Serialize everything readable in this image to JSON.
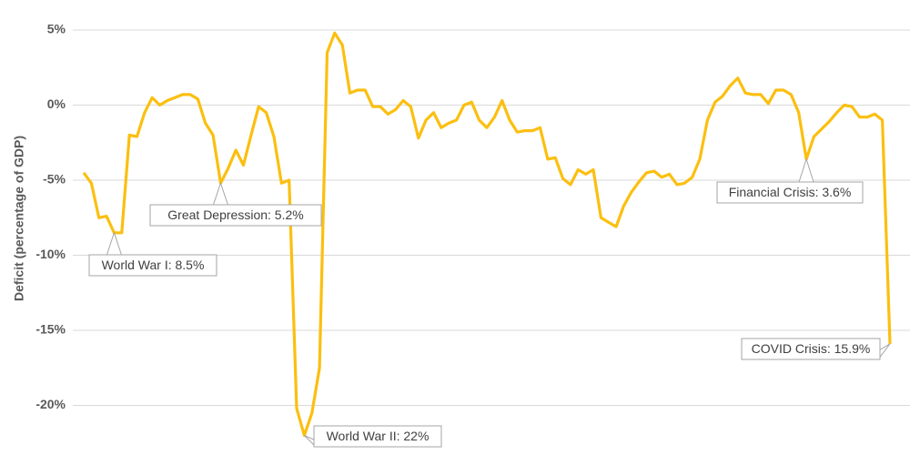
{
  "chart_data": {
    "type": "line",
    "y_label": "Deficit (percentage of GDP)",
    "color": "#fbbf10",
    "grid": true,
    "ylim": [
      -23,
      6
    ],
    "yticks": [
      {
        "value": 5,
        "label": "5%"
      },
      {
        "value": 0,
        "label": "0%"
      },
      {
        "value": -5,
        "label": "-5%"
      },
      {
        "value": -10,
        "label": "-10%"
      },
      {
        "value": -15,
        "label": "-15%"
      },
      {
        "value": -20,
        "label": "-20%"
      }
    ],
    "values": [
      -4.5,
      -5.2,
      -7.5,
      -7.4,
      -8.5,
      -8.5,
      -2.0,
      -2.1,
      -0.5,
      0.5,
      0,
      0.3,
      0.5,
      0.7,
      0.7,
      0.4,
      -1.2,
      -2.0,
      -5.2,
      -4.2,
      -3.0,
      -4.0,
      -2.0,
      -0.1,
      -0.5,
      -2.1,
      -5.2,
      -5.0,
      -20.2,
      -22,
      -20.5,
      -17.5,
      3.5,
      4.8,
      4.0,
      0.8,
      1.0,
      1.0,
      -0.1,
      -0.1,
      -0.6,
      -0.3,
      0.3,
      -0.1,
      -2.2,
      -1.0,
      -0.5,
      -1.5,
      -1.2,
      -1.0,
      0,
      0.2,
      -1.0,
      -1.5,
      -0.8,
      0.3,
      -1.0,
      -1.8,
      -1.7,
      -1.7,
      -1.5,
      -3.6,
      -3.5,
      -4.9,
      -5.3,
      -4.3,
      -4.6,
      -4.3,
      -7.5,
      -7.8,
      -8.1,
      -6.7,
      -5.8,
      -5.1,
      -4.5,
      -4.4,
      -4.8,
      -4.6,
      -5.3,
      -5.2,
      -4.8,
      -3.6,
      -1.0,
      0.2,
      0.6,
      1.3,
      1.8,
      0.8,
      0.7,
      0.7,
      0.1,
      1.0,
      1.0,
      0.7,
      -0.5,
      -3.6,
      -2.1,
      -1.6,
      -1.1,
      -0.5,
      0,
      -0.1,
      -0.8,
      -0.8,
      -0.6,
      -1.0,
      -15.9
    ],
    "annotations": [
      "World War I: 8.5%",
      "Great Depression: 5.2%",
      "World War II: 22%",
      "Financial Crisis: 3.6%",
      "COVID Crisis: 15.9%"
    ]
  }
}
